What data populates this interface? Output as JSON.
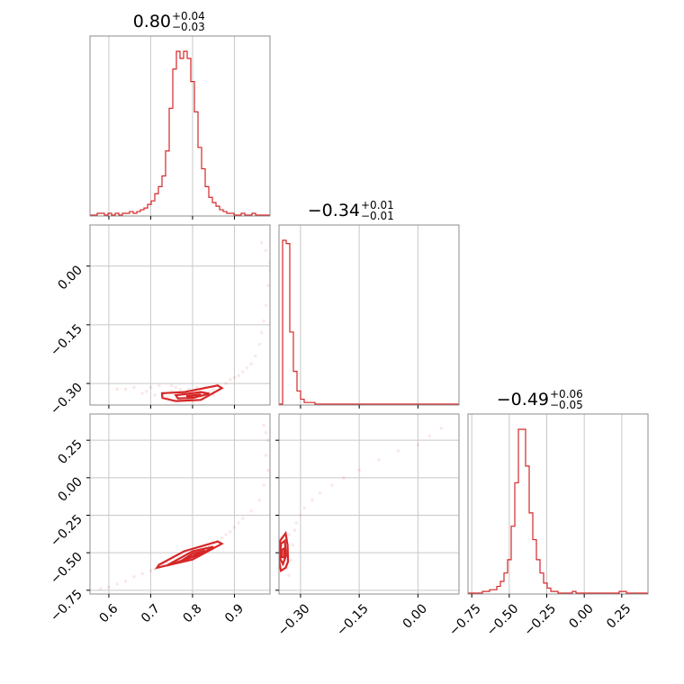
{
  "colors": {
    "series": "#d62728",
    "frame": "#8c8c8c",
    "grid": "#c8c8c8"
  },
  "chart_data": {
    "type": "corner",
    "parameters": [
      {
        "id": "p0",
        "median": "0.80",
        "plus": "+0.04",
        "minus": "−0.03",
        "range": [
          0.555,
          0.985
        ],
        "ticks": [
          0.6,
          0.7,
          0.8,
          0.9
        ],
        "tick_labels": [
          "0.6",
          "0.7",
          "0.8",
          "0.9"
        ]
      },
      {
        "id": "p1",
        "median": "−0.34",
        "plus": "+0.01",
        "minus": "−0.01",
        "range": [
          -0.355,
          0.105
        ],
        "ticks": [
          -0.3,
          -0.15,
          0.0
        ],
        "tick_labels": [
          "−0.30",
          "−0.15",
          "0.00"
        ]
      },
      {
        "id": "p2",
        "median": "−0.49",
        "plus": "+0.06",
        "minus": "−0.05",
        "range": [
          -0.775,
          0.425
        ],
        "ticks": [
          -0.75,
          -0.5,
          -0.25,
          0.0,
          0.25
        ],
        "tick_labels": [
          "−0.75",
          "−0.50",
          "−0.25",
          "0.00",
          "0.25"
        ]
      }
    ],
    "histograms": [
      {
        "param": 0,
        "bin_edges_range": [
          0.555,
          0.985
        ],
        "counts": [
          0,
          0,
          1,
          1,
          0,
          1,
          0,
          1,
          0,
          1,
          1,
          2,
          1,
          2,
          3,
          4,
          6,
          8,
          12,
          16,
          22,
          36,
          60,
          82,
          92,
          88,
          92,
          88,
          75,
          58,
          38,
          26,
          16,
          10,
          7,
          5,
          3,
          2,
          1,
          1,
          0,
          0,
          1,
          0,
          0,
          1,
          0,
          0,
          0,
          0
        ]
      },
      {
        "param": 1,
        "bin_edges_range": [
          -0.355,
          0.105
        ],
        "counts": [
          0,
          100,
          98,
          44,
          20,
          8,
          3,
          1,
          1,
          1,
          0,
          0,
          0,
          0,
          0,
          0,
          0,
          0,
          0,
          0,
          0,
          0,
          0,
          0,
          0,
          0,
          0,
          0,
          0,
          0,
          0,
          0,
          0,
          0,
          0,
          0,
          0,
          0,
          0,
          0,
          0,
          0,
          0,
          0,
          0,
          0,
          0,
          0,
          0,
          0
        ]
      },
      {
        "param": 2,
        "bin_edges_range": [
          -0.775,
          0.425
        ],
        "counts": [
          0,
          0,
          0,
          0,
          1,
          1,
          2,
          2,
          4,
          7,
          12,
          20,
          40,
          66,
          98,
          98,
          76,
          48,
          32,
          20,
          12,
          6,
          3,
          1,
          1,
          0,
          0,
          0,
          0,
          1,
          0,
          0,
          0,
          0,
          0,
          0,
          0,
          0,
          0,
          0,
          0,
          0,
          1,
          1,
          0,
          0,
          0,
          0,
          0,
          0
        ]
      }
    ],
    "pairs": [
      {
        "x": 0,
        "y": 1,
        "scatter": [
          [
            0.62,
            -0.315
          ],
          [
            0.66,
            -0.31
          ],
          [
            0.69,
            -0.32
          ],
          [
            0.71,
            -0.33
          ],
          [
            0.72,
            -0.305
          ],
          [
            0.73,
            -0.325
          ],
          [
            0.74,
            -0.335
          ],
          [
            0.75,
            -0.32
          ],
          [
            0.76,
            -0.31
          ],
          [
            0.77,
            -0.34
          ],
          [
            0.78,
            -0.33
          ],
          [
            0.79,
            -0.315
          ],
          [
            0.8,
            -0.345
          ],
          [
            0.81,
            -0.325
          ],
          [
            0.82,
            -0.335
          ],
          [
            0.83,
            -0.31
          ],
          [
            0.84,
            -0.32
          ],
          [
            0.85,
            -0.33
          ],
          [
            0.86,
            -0.305
          ],
          [
            0.87,
            -0.31
          ],
          [
            0.88,
            -0.3
          ],
          [
            0.89,
            -0.29
          ],
          [
            0.9,
            -0.285
          ],
          [
            0.91,
            -0.28
          ],
          [
            0.92,
            -0.27
          ],
          [
            0.93,
            -0.26
          ],
          [
            0.94,
            -0.25
          ],
          [
            0.95,
            -0.23
          ],
          [
            0.96,
            -0.2
          ],
          [
            0.965,
            -0.17
          ],
          [
            0.97,
            -0.14
          ],
          [
            0.975,
            -0.1
          ],
          [
            0.98,
            -0.05
          ],
          [
            0.985,
            -0.01
          ],
          [
            0.985,
            0.01
          ],
          [
            0.975,
            0.04
          ],
          [
            0.965,
            0.06
          ],
          [
            0.75,
            -0.305
          ],
          [
            0.77,
            -0.315
          ],
          [
            0.79,
            -0.34
          ],
          [
            0.81,
            -0.31
          ],
          [
            0.83,
            -0.33
          ],
          [
            0.85,
            -0.315
          ],
          [
            0.7,
            -0.31
          ],
          [
            0.68,
            -0.325
          ],
          [
            0.64,
            -0.315
          ]
        ],
        "contours": [
          [
            [
              0.727,
              -0.325
            ],
            [
              0.78,
              -0.322
            ],
            [
              0.86,
              -0.305
            ],
            [
              0.87,
              -0.312
            ],
            [
              0.82,
              -0.342
            ],
            [
              0.76,
              -0.345
            ],
            [
              0.728,
              -0.337
            ],
            [
              0.727,
              -0.325
            ]
          ],
          [
            [
              0.76,
              -0.33
            ],
            [
              0.82,
              -0.322
            ],
            [
              0.84,
              -0.326
            ],
            [
              0.8,
              -0.337
            ],
            [
              0.765,
              -0.338
            ],
            [
              0.76,
              -0.33
            ]
          ],
          [
            [
              0.785,
              -0.332
            ],
            [
              0.82,
              -0.328
            ],
            [
              0.805,
              -0.336
            ],
            [
              0.785,
              -0.332
            ]
          ]
        ]
      },
      {
        "x": 0,
        "y": 2,
        "scatter": [
          [
            0.58,
            -0.74
          ],
          [
            0.6,
            -0.73
          ],
          [
            0.62,
            -0.71
          ],
          [
            0.64,
            -0.69
          ],
          [
            0.66,
            -0.66
          ],
          [
            0.68,
            -0.64
          ],
          [
            0.7,
            -0.62
          ],
          [
            0.71,
            -0.61
          ],
          [
            0.72,
            -0.6
          ],
          [
            0.73,
            -0.58
          ],
          [
            0.74,
            -0.57
          ],
          [
            0.75,
            -0.56
          ],
          [
            0.76,
            -0.55
          ],
          [
            0.77,
            -0.54
          ],
          [
            0.78,
            -0.53
          ],
          [
            0.79,
            -0.51
          ],
          [
            0.8,
            -0.5
          ],
          [
            0.81,
            -0.49
          ],
          [
            0.82,
            -0.47
          ],
          [
            0.83,
            -0.46
          ],
          [
            0.84,
            -0.45
          ],
          [
            0.85,
            -0.43
          ],
          [
            0.86,
            -0.42
          ],
          [
            0.87,
            -0.4
          ],
          [
            0.88,
            -0.38
          ],
          [
            0.89,
            -0.36
          ],
          [
            0.9,
            -0.33
          ],
          [
            0.91,
            -0.3
          ],
          [
            0.92,
            -0.27
          ],
          [
            0.94,
            -0.22
          ],
          [
            0.96,
            -0.15
          ],
          [
            0.97,
            -0.05
          ],
          [
            0.98,
            0.05
          ],
          [
            0.975,
            0.15
          ],
          [
            0.98,
            0.25
          ],
          [
            0.975,
            0.3
          ],
          [
            0.97,
            0.35
          ]
        ],
        "contours": [
          [
            [
              0.715,
              -0.6
            ],
            [
              0.8,
              -0.545
            ],
            [
              0.87,
              -0.44
            ],
            [
              0.86,
              -0.425
            ],
            [
              0.78,
              -0.49
            ],
            [
              0.72,
              -0.58
            ],
            [
              0.715,
              -0.6
            ]
          ],
          [
            [
              0.74,
              -0.585
            ],
            [
              0.82,
              -0.51
            ],
            [
              0.85,
              -0.46
            ],
            [
              0.8,
              -0.49
            ],
            [
              0.745,
              -0.575
            ],
            [
              0.74,
              -0.585
            ]
          ],
          [
            [
              0.77,
              -0.56
            ],
            [
              0.83,
              -0.485
            ],
            [
              0.8,
              -0.505
            ],
            [
              0.77,
              -0.56
            ]
          ]
        ]
      },
      {
        "x": 1,
        "y": 2,
        "scatter": [
          [
            -0.35,
            -0.4
          ],
          [
            -0.345,
            -0.45
          ],
          [
            -0.34,
            -0.5
          ],
          [
            -0.34,
            -0.55
          ],
          [
            -0.335,
            -0.6
          ],
          [
            -0.33,
            -0.65
          ],
          [
            -0.325,
            -0.55
          ],
          [
            -0.32,
            -0.45
          ],
          [
            -0.315,
            -0.35
          ],
          [
            -0.31,
            -0.3
          ],
          [
            -0.3,
            -0.25
          ],
          [
            -0.29,
            -0.2
          ],
          [
            -0.27,
            -0.15
          ],
          [
            -0.25,
            -0.1
          ],
          [
            -0.22,
            -0.05
          ],
          [
            -0.19,
            0.0
          ],
          [
            -0.15,
            0.05
          ],
          [
            -0.1,
            0.12
          ],
          [
            -0.05,
            0.18
          ],
          [
            0.0,
            0.22
          ],
          [
            0.03,
            0.28
          ],
          [
            0.06,
            0.33
          ],
          [
            -0.348,
            -0.48
          ],
          [
            -0.352,
            -0.53
          ],
          [
            -0.343,
            -0.58
          ],
          [
            -0.337,
            -0.42
          ],
          [
            -0.33,
            -0.38
          ]
        ],
        "contours": [
          [
            [
              -0.352,
              -0.42
            ],
            [
              -0.338,
              -0.37
            ],
            [
              -0.333,
              -0.45
            ],
            [
              -0.332,
              -0.56
            ],
            [
              -0.338,
              -0.6
            ],
            [
              -0.35,
              -0.62
            ],
            [
              -0.355,
              -0.55
            ],
            [
              -0.352,
              -0.42
            ]
          ],
          [
            [
              -0.35,
              -0.44
            ],
            [
              -0.34,
              -0.42
            ],
            [
              -0.337,
              -0.52
            ],
            [
              -0.345,
              -0.575
            ],
            [
              -0.352,
              -0.54
            ],
            [
              -0.35,
              -0.44
            ]
          ],
          [
            [
              -0.347,
              -0.48
            ],
            [
              -0.341,
              -0.47
            ],
            [
              -0.342,
              -0.53
            ],
            [
              -0.348,
              -0.53
            ],
            [
              -0.347,
              -0.48
            ]
          ]
        ]
      }
    ]
  }
}
